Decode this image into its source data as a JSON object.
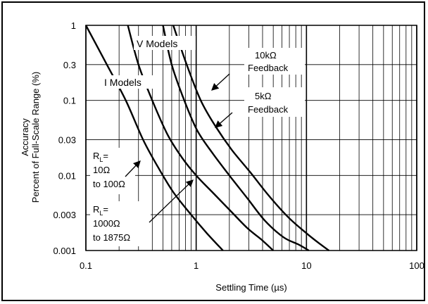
{
  "chart_data": {
    "type": "line",
    "title": "",
    "xlabel": "Settling Time (µs)",
    "ylabel_line1": "Accuracy",
    "ylabel_line2": "Percent of Full-Scale Range (%)",
    "x_scale": "log",
    "y_scale": "log",
    "xlim": [
      0.1,
      100
    ],
    "ylim": [
      0.001,
      1
    ],
    "x_ticks": [
      0.1,
      1,
      10,
      100
    ],
    "x_tick_labels": [
      "0.1",
      "1",
      "10",
      "100"
    ],
    "y_ticks": [
      0.001,
      0.003,
      0.01,
      0.03,
      0.1,
      0.3,
      1
    ],
    "y_tick_labels": [
      "0.001",
      "0.003",
      "0.01",
      "0.03",
      "0.1",
      "0.3",
      "1"
    ],
    "grid": true,
    "series": [
      {
        "name": "I Models, RL = 10Ω to 100Ω",
        "x": [
          0.1,
          0.155,
          0.23,
          0.33,
          0.45,
          0.62,
          0.9,
          1.25,
          1.75
        ],
        "y": [
          1,
          0.3,
          0.1,
          0.03,
          0.013,
          0.006,
          0.003,
          0.0017,
          0.001
        ]
      },
      {
        "name": "I Models, RL = 1000Ω to 1875Ω",
        "x": [
          0.24,
          0.3,
          0.4,
          0.55,
          0.75,
          1.0,
          1.4,
          2.0,
          2.9,
          3.9,
          5.0
        ],
        "y": [
          1,
          0.3,
          0.1,
          0.035,
          0.017,
          0.01,
          0.006,
          0.0035,
          0.002,
          0.0014,
          0.001
        ]
      },
      {
        "name": "V Models, 5kΩ Feedback",
        "x": [
          0.5,
          0.6,
          0.78,
          1.02,
          1.4,
          2.0,
          2.9,
          4.2,
          6.2,
          8.5,
          10.5
        ],
        "y": [
          1,
          0.3,
          0.1,
          0.04,
          0.02,
          0.01,
          0.005,
          0.0025,
          0.0015,
          0.0012,
          0.001
        ]
      },
      {
        "name": "V Models, 10kΩ Feedback",
        "x": [
          0.62,
          0.82,
          1.1,
          1.5,
          2.1,
          3.1,
          4.5,
          6.8,
          10,
          13.5,
          16
        ],
        "y": [
          1,
          0.3,
          0.1,
          0.045,
          0.022,
          0.011,
          0.0055,
          0.0028,
          0.0017,
          0.0012,
          0.001
        ]
      }
    ],
    "annotations": {
      "v_models": "V Models",
      "i_models": "I Models",
      "fb10k_line1": "10kΩ",
      "fb10k_line2": "Feedback",
      "fb5k_line1": "5kΩ",
      "fb5k_line2": "Feedback",
      "rl1_r": "R",
      "rl1_sub": "L",
      "rl1_eq": "=",
      "rl1_line2": "10Ω",
      "rl1_line3": "to 100Ω",
      "rl2_r": "R",
      "rl2_sub": "L",
      "rl2_eq": "=",
      "rl2_line2": "1000Ω",
      "rl2_line3": "to 1875Ω"
    }
  }
}
